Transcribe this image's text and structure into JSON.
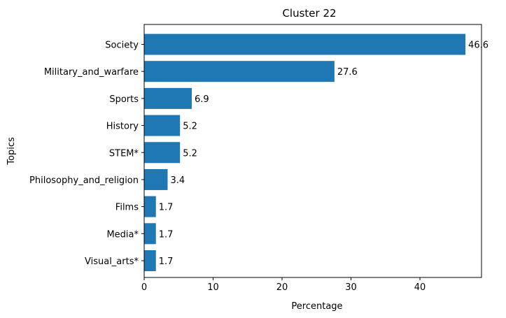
{
  "chart_data": {
    "type": "bar",
    "orientation": "horizontal",
    "title": "Cluster 22",
    "xlabel": "Percentage",
    "ylabel": "Topics",
    "categories": [
      "Society",
      "Military_and_warfare",
      "Sports",
      "History",
      "STEM*",
      "Philosophy_and_religion",
      "Films",
      "Media*",
      "Visual_arts*"
    ],
    "values": [
      46.6,
      27.6,
      6.9,
      5.2,
      5.2,
      3.4,
      1.7,
      1.7,
      1.7
    ],
    "value_labels": [
      "46.6",
      "27.6",
      "6.9",
      "5.2",
      "5.2",
      "3.4",
      "1.7",
      "1.7",
      "1.7"
    ],
    "xlim": [
      0,
      48.93
    ],
    "xticks": [
      0,
      10,
      20,
      30,
      40
    ],
    "xtick_labels": [
      "0",
      "10",
      "20",
      "30",
      "40"
    ],
    "grid": false,
    "bar_color": "#1f77b4"
  }
}
